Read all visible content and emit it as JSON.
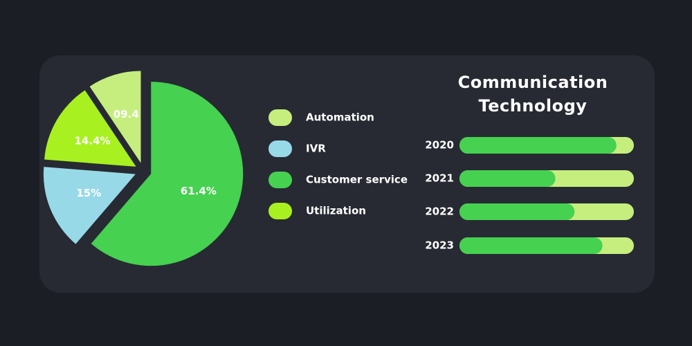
{
  "chart_data": [
    {
      "type": "pie",
      "categories": [
        "Automation",
        "IVR",
        "Customer service",
        "Utilization"
      ],
      "values": [
        9.4,
        15,
        61.4,
        14.4
      ],
      "value_labels": [
        "09.4",
        "15%",
        "61.4%",
        "14.4%"
      ],
      "colors": [
        "#c5ee7e",
        "#98d9e8",
        "#46d150",
        "#a8f020"
      ]
    },
    {
      "type": "bar",
      "title": "Communication Technology",
      "categories": [
        "2020",
        "2021",
        "2022",
        "2023"
      ],
      "values": [
        90,
        55,
        66,
        82
      ],
      "xlim": [
        0,
        100
      ],
      "color": "#46d150",
      "track_color": "#c5ee7e"
    }
  ]
}
